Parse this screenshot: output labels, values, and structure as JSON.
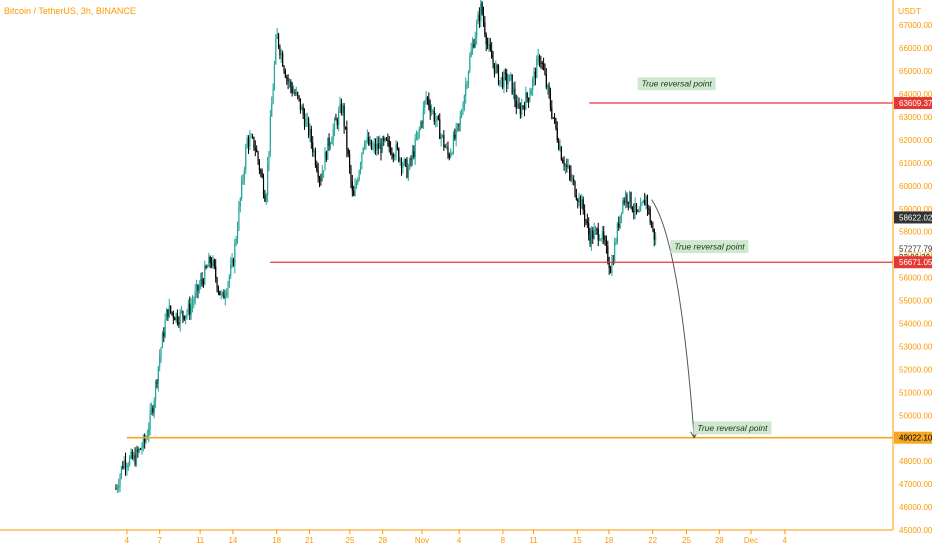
{
  "header": {
    "symbol_line": "Bitcoin / TetherUS, 3h, BINANCE",
    "currency": "USDT"
  },
  "colors": {
    "up": "#26a69a",
    "down": "#000000",
    "axis_text": "#ff9800",
    "axis_line": "#ff9800",
    "red_line": "#e53935",
    "orange_line": "#f5a623",
    "label_bg": "#cfe8cf"
  },
  "chart_data": {
    "type": "candlestick",
    "y_range": [
      45000,
      68000
    ],
    "y_ticks": [
      "46000.00",
      "47000.00",
      "48000.00",
      "49000.00",
      "50000.00",
      "51000.00",
      "52000.00",
      "53000.00",
      "54000.00",
      "55000.00",
      "56000.00",
      "57000.00",
      "58000.00",
      "59000.00",
      "60000.00",
      "61000.00",
      "62000.00",
      "63000.00",
      "64000.00",
      "65000.00",
      "66000.00",
      "67000.00",
      "45000.00"
    ],
    "x_ticks": [
      "4",
      "7",
      "11",
      "14",
      "18",
      "21",
      "25",
      "28",
      "Nov",
      "4",
      "8",
      "11",
      "15",
      "18",
      "22",
      "25",
      "28",
      "Dec",
      "4"
    ],
    "price_labels": [
      {
        "text": "63609.37",
        "value": 63609.37,
        "style": "red"
      },
      {
        "text": "58622.02",
        "value": 58622.02,
        "style": "dark"
      },
      {
        "text": "57277.79",
        "value": 57277.79,
        "style": "plain"
      },
      {
        "text": "02:06:29",
        "value": 56900,
        "style": "plain"
      },
      {
        "text": "56671.05",
        "value": 56671.05,
        "style": "red"
      },
      {
        "text": "49022.10",
        "value": 49022.1,
        "style": "orange"
      }
    ],
    "levels": [
      {
        "value": 63609.37,
        "style": "red",
        "from_day": 15.3
      },
      {
        "value": 56671.05,
        "style": "red",
        "from_day": -13.9
      },
      {
        "value": 49022.1,
        "style": "orange",
        "from_day": -27
      }
    ],
    "annotations": [
      {
        "text": "True reversal point",
        "value": 64450,
        "day": 23.3
      },
      {
        "text": "True reversal point",
        "value": 57350,
        "day": 26.3
      },
      {
        "text": "True reversal point",
        "value": 49450,
        "day": 28.4
      }
    ],
    "projection": {
      "from": [
        21.0,
        59400
      ],
      "to": [
        24.9,
        49022
      ]
    },
    "path_days": [
      -28,
      -27.3,
      -26.3,
      -25.3,
      -24.6,
      -24.0,
      -23.3,
      -22.3,
      -21.3,
      -20.3,
      -19.3,
      -18.3,
      -17.3,
      -16.0,
      -15.3,
      -14.3,
      -13.9,
      -13.3,
      -12.3,
      -11.3,
      -10.3,
      -9.3,
      -8.6,
      -7.3,
      -6.3,
      -5.3,
      -4.6,
      -3.3,
      -2.3,
      -1.3,
      -0.3,
      0.4,
      1.4,
      2.4,
      3.4,
      4.4,
      5.4,
      6.1,
      7.1,
      8.1,
      8.8,
      9.8,
      10.8,
      11.8,
      12.8,
      13.8,
      14.8,
      15.3,
      16.3,
      17.3,
      18.3,
      18.8,
      19.8,
      20.5,
      21.0,
      21.4
    ],
    "path_values": [
      46800,
      48000,
      48100,
      48900,
      50500,
      52600,
      54600,
      54300,
      54600,
      55700,
      56800,
      55000,
      56600,
      62000,
      61800,
      59500,
      62500,
      66600,
      64600,
      63700,
      62300,
      60300,
      61800,
      63500,
      59300,
      62100,
      61600,
      61800,
      61500,
      60600,
      62300,
      63900,
      62700,
      61300,
      62600,
      65600,
      67800,
      65900,
      64600,
      64600,
      63200,
      64000,
      65700,
      63400,
      61300,
      60100,
      58900,
      57800,
      58000,
      56400,
      59300,
      59600,
      58600,
      59500,
      58200,
      57600
    ]
  }
}
